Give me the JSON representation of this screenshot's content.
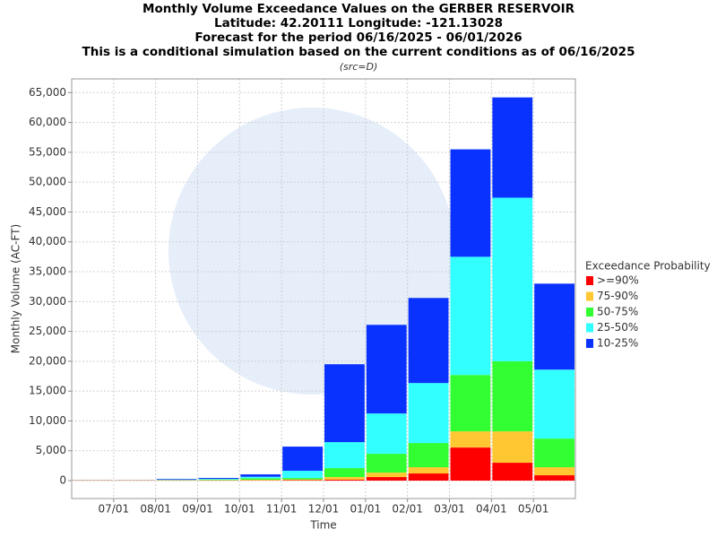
{
  "chart_data": {
    "type": "stacked_bar",
    "title": [
      "Monthly Volume Exceedance Values on the GERBER RESERVOIR",
      "Latitude: 42.20111 Longitude: -121.13028",
      "Forecast for the period 06/16/2025 - 06/01/2026",
      "This is a conditional simulation based on the current conditions as of 06/16/2025"
    ],
    "subtitle": "(src=D)",
    "x_label": "Time",
    "y_label": "Monthly Volume (AC-FT)",
    "legend_title": "Exceedance Probability",
    "legend": "right",
    "grid": true,
    "categories": [
      null,
      "07/01",
      "08/01",
      "09/01",
      "10/01",
      "11/01",
      "12/01",
      "01/01",
      "02/01",
      "03/01",
      "04/01",
      "05/01"
    ],
    "series": [
      {
        "name": ">=90%",
        "color": "#ff0000",
        "values": [
          50,
          50,
          50,
          50,
          50,
          100,
          150,
          600,
          1200,
          5550,
          3000,
          900
        ]
      },
      {
        "name": "75-90%",
        "color": "#ffc832",
        "values": [
          20,
          20,
          30,
          50,
          100,
          100,
          450,
          750,
          1050,
          2700,
          5250,
          1350
        ]
      },
      {
        "name": "50-75%",
        "color": "#32ff32",
        "values": [
          10,
          10,
          50,
          100,
          250,
          250,
          1500,
          3150,
          4050,
          9450,
          11750,
          4800
        ]
      },
      {
        "name": "25-50%",
        "color": "#32ffff",
        "values": [
          10,
          10,
          70,
          100,
          250,
          1200,
          4350,
          6750,
          10050,
          19800,
          27400,
          11550
        ]
      },
      {
        "name": "10-25%",
        "color": "#0a32ff",
        "values": [
          10,
          10,
          100,
          150,
          400,
          4050,
          13050,
          14850,
          14250,
          18000,
          16800,
          14400
        ]
      }
    ],
    "ylim": [
      -3000,
      67300
    ],
    "yticks": [
      0,
      {
        "value": 5000,
        "label": "5,000"
      },
      {
        "value": 10000,
        "label": "10,000"
      },
      {
        "value": 15000,
        "label": "15,000"
      },
      {
        "value": 20000,
        "label": "20,000"
      },
      {
        "value": 25000,
        "label": "25,000"
      },
      {
        "value": 30000,
        "label": "30,000"
      },
      {
        "value": 35000,
        "label": "35,000"
      },
      {
        "value": 40000,
        "label": "40,000"
      },
      {
        "value": 45000,
        "label": "45,000"
      },
      {
        "value": 50000,
        "label": "50,000"
      },
      {
        "value": 55000,
        "label": "55,000"
      },
      {
        "value": 60000,
        "label": "60,000"
      },
      {
        "value": 65000,
        "label": "65,000"
      }
    ]
  }
}
